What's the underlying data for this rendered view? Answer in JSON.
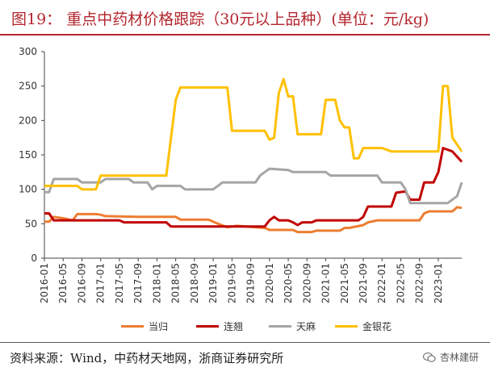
{
  "header": {
    "title": "图19：   重点中药材价格跟踪（30元以上品种）(单位：元/kg)"
  },
  "footer": {
    "source": "资料来源：Wind，中药材天地网，浙商证券研究所",
    "watermark": "杏林建研",
    "watermark_icon": "wechat-icon"
  },
  "chart_data": {
    "type": "line",
    "title": "",
    "xlabel": "",
    "ylabel": "",
    "ylim": [
      0,
      300
    ],
    "yticks": [
      0,
      50,
      100,
      150,
      200,
      250,
      300
    ],
    "grid": false,
    "legend_position": "bottom",
    "x_tick_labels": [
      "2016-01",
      "2016-05",
      "2016-09",
      "2017-01",
      "2017-05",
      "2017-09",
      "2018-01",
      "2018-05",
      "2018-09",
      "2019-01",
      "2019-05",
      "2019-09",
      "2020-01",
      "2020-05",
      "2020-09",
      "2021-01",
      "2021-05",
      "2021-09",
      "2022-01",
      "2022-05",
      "2022-09",
      "2023-01"
    ],
    "x_range": [
      "2016-01",
      "2023-06"
    ],
    "series": [
      {
        "name": "当归",
        "color": "#ed7d31",
        "points": [
          [
            "2016-01",
            53
          ],
          [
            "2016-02",
            53
          ],
          [
            "2016-03",
            60
          ],
          [
            "2016-05",
            58
          ],
          [
            "2016-07",
            55
          ],
          [
            "2016-08",
            64
          ],
          [
            "2016-12",
            64
          ],
          [
            "2017-01",
            63
          ],
          [
            "2017-02",
            61
          ],
          [
            "2017-09",
            60
          ],
          [
            "2018-05",
            60
          ],
          [
            "2018-06",
            56
          ],
          [
            "2018-12",
            56
          ],
          [
            "2019-02",
            50
          ],
          [
            "2019-04",
            45
          ],
          [
            "2019-06",
            47
          ],
          [
            "2019-12",
            44
          ],
          [
            "2020-01",
            41
          ],
          [
            "2020-06",
            41
          ],
          [
            "2020-07",
            38
          ],
          [
            "2020-10",
            38
          ],
          [
            "2020-11",
            40
          ],
          [
            "2021-04",
            40
          ],
          [
            "2021-05",
            44
          ],
          [
            "2021-06",
            44
          ],
          [
            "2021-09",
            48
          ],
          [
            "2021-10",
            52
          ],
          [
            "2021-12",
            55
          ],
          [
            "2022-09",
            55
          ],
          [
            "2022-10",
            65
          ],
          [
            "2022-11",
            68
          ],
          [
            "2023-04",
            68
          ],
          [
            "2023-05",
            74
          ],
          [
            "2023-06",
            73
          ]
        ]
      },
      {
        "name": "连翘",
        "color": "#c00000",
        "points": [
          [
            "2016-01",
            65
          ],
          [
            "2016-02",
            65
          ],
          [
            "2016-03",
            55
          ],
          [
            "2017-05",
            55
          ],
          [
            "2017-06",
            52
          ],
          [
            "2018-03",
            52
          ],
          [
            "2018-04",
            46
          ],
          [
            "2019-12",
            46
          ],
          [
            "2020-01",
            55
          ],
          [
            "2020-02",
            60
          ],
          [
            "2020-03",
            55
          ],
          [
            "2020-05",
            55
          ],
          [
            "2020-06",
            52
          ],
          [
            "2020-07",
            48
          ],
          [
            "2020-08",
            52
          ],
          [
            "2020-10",
            52
          ],
          [
            "2020-11",
            55
          ],
          [
            "2021-08",
            55
          ],
          [
            "2021-09",
            60
          ],
          [
            "2021-10",
            75
          ],
          [
            "2022-03",
            75
          ],
          [
            "2022-04",
            95
          ],
          [
            "2022-06",
            97
          ],
          [
            "2022-07",
            85
          ],
          [
            "2022-09",
            85
          ],
          [
            "2022-10",
            110
          ],
          [
            "2022-12",
            110
          ],
          [
            "2023-01",
            125
          ],
          [
            "2023-02",
            160
          ],
          [
            "2023-04",
            155
          ],
          [
            "2023-06",
            140
          ]
        ]
      },
      {
        "name": "天麻",
        "color": "#a5a5a5",
        "points": [
          [
            "2016-01",
            96
          ],
          [
            "2016-02",
            96
          ],
          [
            "2016-03",
            115
          ],
          [
            "2016-08",
            115
          ],
          [
            "2016-09",
            110
          ],
          [
            "2017-01",
            110
          ],
          [
            "2017-02",
            115
          ],
          [
            "2017-07",
            115
          ],
          [
            "2017-08",
            110
          ],
          [
            "2017-11",
            110
          ],
          [
            "2017-12",
            100
          ],
          [
            "2018-01",
            105
          ],
          [
            "2018-06",
            105
          ],
          [
            "2018-07",
            100
          ],
          [
            "2019-01",
            100
          ],
          [
            "2019-03",
            110
          ],
          [
            "2019-10",
            110
          ],
          [
            "2019-11",
            120
          ],
          [
            "2020-01",
            130
          ],
          [
            "2020-05",
            128
          ],
          [
            "2020-06",
            125
          ],
          [
            "2021-01",
            125
          ],
          [
            "2021-02",
            120
          ],
          [
            "2021-12",
            120
          ],
          [
            "2022-01",
            110
          ],
          [
            "2022-05",
            110
          ],
          [
            "2022-06",
            100
          ],
          [
            "2022-07",
            80
          ],
          [
            "2023-03",
            80
          ],
          [
            "2023-05",
            90
          ],
          [
            "2023-06",
            110
          ]
        ]
      },
      {
        "name": "金银花",
        "color": "#ffc000",
        "points": [
          [
            "2016-01",
            105
          ],
          [
            "2016-08",
            105
          ],
          [
            "2016-09",
            100
          ],
          [
            "2016-12",
            100
          ],
          [
            "2017-01",
            120
          ],
          [
            "2018-03",
            120
          ],
          [
            "2018-05",
            230
          ],
          [
            "2018-06",
            248
          ],
          [
            "2019-04",
            248
          ],
          [
            "2019-05",
            185
          ],
          [
            "2019-12",
            185
          ],
          [
            "2020-01",
            172
          ],
          [
            "2020-02",
            175
          ],
          [
            "2020-03",
            240
          ],
          [
            "2020-04",
            260
          ],
          [
            "2020-05",
            235
          ],
          [
            "2020-06",
            235
          ],
          [
            "2020-07",
            180
          ],
          [
            "2020-12",
            180
          ],
          [
            "2021-01",
            230
          ],
          [
            "2021-03",
            230
          ],
          [
            "2021-04",
            200
          ],
          [
            "2021-05",
            190
          ],
          [
            "2021-06",
            190
          ],
          [
            "2021-07",
            145
          ],
          [
            "2021-08",
            145
          ],
          [
            "2021-09",
            160
          ],
          [
            "2022-01",
            160
          ],
          [
            "2022-03",
            155
          ],
          [
            "2023-01",
            155
          ],
          [
            "2023-02",
            250
          ],
          [
            "2023-03",
            250
          ],
          [
            "2023-04",
            175
          ],
          [
            "2023-06",
            155
          ]
        ]
      }
    ]
  }
}
